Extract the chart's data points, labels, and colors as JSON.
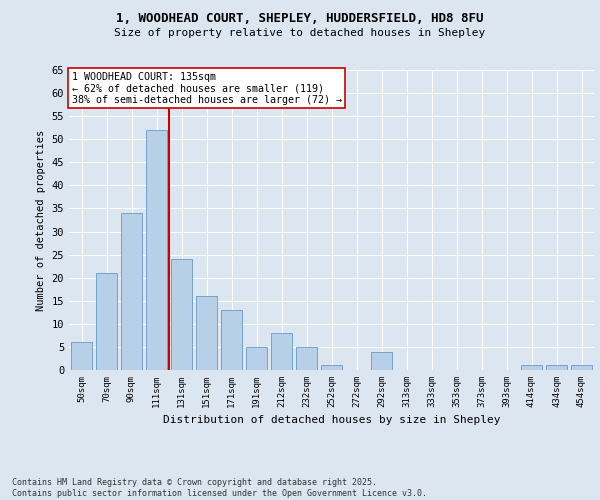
{
  "title1": "1, WOODHEAD COURT, SHEPLEY, HUDDERSFIELD, HD8 8FU",
  "title2": "Size of property relative to detached houses in Shepley",
  "xlabel": "Distribution of detached houses by size in Shepley",
  "ylabel": "Number of detached properties",
  "bar_labels": [
    "50sqm",
    "70sqm",
    "90sqm",
    "111sqm",
    "131sqm",
    "151sqm",
    "171sqm",
    "191sqm",
    "212sqm",
    "232sqm",
    "252sqm",
    "272sqm",
    "292sqm",
    "313sqm",
    "333sqm",
    "353sqm",
    "373sqm",
    "393sqm",
    "414sqm",
    "434sqm",
    "454sqm"
  ],
  "bar_values": [
    6,
    21,
    34,
    52,
    24,
    16,
    13,
    5,
    8,
    5,
    1,
    0,
    4,
    0,
    0,
    0,
    0,
    0,
    1,
    1,
    1
  ],
  "bar_color": "#b8cfe8",
  "bar_edgecolor": "#6699cc",
  "bg_color": "#dce6f0",
  "grid_color": "#ffffff",
  "fig_bg_color": "#dce6f0",
  "vline_color": "#cc0000",
  "vline_x_index": 3.5,
  "annotation_text": "1 WOODHEAD COURT: 135sqm\n← 62% of detached houses are smaller (119)\n38% of semi-detached houses are larger (72) →",
  "annotation_box_facecolor": "#ffffff",
  "annotation_box_edgecolor": "#cc0000",
  "ylim": [
    0,
    65
  ],
  "yticks": [
    0,
    5,
    10,
    15,
    20,
    25,
    30,
    35,
    40,
    45,
    50,
    55,
    60,
    65
  ],
  "footer_text": "Contains HM Land Registry data © Crown copyright and database right 2025.\nContains public sector information licensed under the Open Government Licence v3.0.",
  "font_family": "DejaVu Sans Mono"
}
